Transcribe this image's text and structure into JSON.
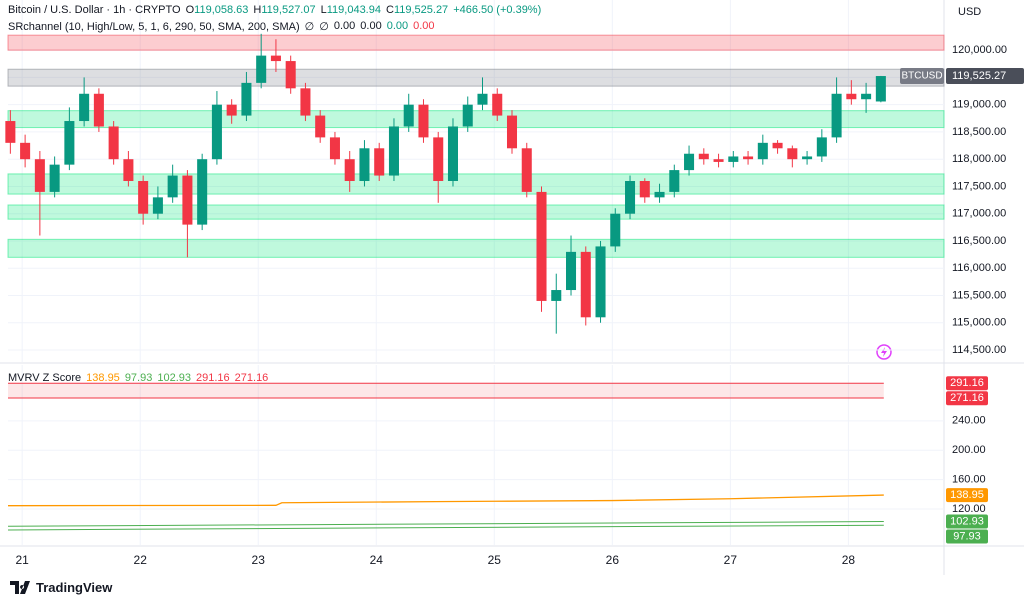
{
  "header": {
    "symbol_line": "Bitcoin / U.S. Dollar · 1h · CRYPTO",
    "ohlc": [
      {
        "key": "O",
        "text": "119,058.63"
      },
      {
        "key": "H",
        "text": "119,527.07"
      },
      {
        "key": "L",
        "text": "119,043.94"
      },
      {
        "key": "C",
        "text": "119,525.27"
      }
    ],
    "change": "+466.50 (+0.39%)",
    "currency": "USD"
  },
  "indicator": {
    "name": "SRchannel (10, High/Low, 5, 1, 6, 290, 50, SMA, 200, SMA)",
    "values": [
      {
        "text": "∅",
        "color": "#131722"
      },
      {
        "text": "∅",
        "color": "#131722"
      },
      {
        "text": "0.00",
        "color": "#131722"
      },
      {
        "text": "0.00",
        "color": "#131722"
      },
      {
        "text": "0.00",
        "color": "#089981"
      },
      {
        "text": "0.00",
        "color": "#f23645"
      }
    ]
  },
  "chart_data": [
    {
      "type": "candlestick",
      "up_color": "#089981",
      "down_color": "#f23645",
      "grid": true,
      "x": [
        20.9,
        21.025,
        21.15,
        21.275,
        21.4,
        21.525,
        21.65,
        21.775,
        21.9,
        22.025,
        22.15,
        22.275,
        22.4,
        22.525,
        22.65,
        22.775,
        22.9,
        23.025,
        23.15,
        23.275,
        23.4,
        23.525,
        23.65,
        23.775,
        23.9,
        24.025,
        24.15,
        24.275,
        24.4,
        24.525,
        24.65,
        24.775,
        24.9,
        25.025,
        25.15,
        25.275,
        25.4,
        25.525,
        25.65,
        25.775,
        25.9,
        26.025,
        26.15,
        26.275,
        26.4,
        26.525,
        26.65,
        26.775,
        26.9,
        27.025,
        27.15,
        27.275,
        27.4,
        27.525,
        27.65,
        27.775,
        27.9,
        28.025,
        28.15,
        28.275
      ],
      "open": [
        118700,
        118300,
        118000,
        117400,
        117900,
        118700,
        119200,
        118600,
        118000,
        117600,
        117000,
        117300,
        117700,
        116800,
        118000,
        119000,
        118800,
        119400,
        119900,
        119800,
        119300,
        118800,
        118400,
        118000,
        117600,
        118200,
        117700,
        118600,
        119000,
        118400,
        117600,
        118600,
        119000,
        119200,
        118800,
        118200,
        117400,
        115400,
        115600,
        116300,
        115100,
        116400,
        117000,
        117600,
        117300,
        117400,
        117800,
        118100,
        118000,
        117950,
        118050,
        118000,
        118300,
        118200,
        118000,
        118050,
        118400,
        119200,
        119100,
        119058.63
      ],
      "high": [
        118900,
        118450,
        118150,
        118050,
        118950,
        119500,
        119300,
        118700,
        118150,
        117700,
        117500,
        117900,
        117800,
        118100,
        119250,
        119100,
        119600,
        120300,
        120200,
        119900,
        119400,
        118900,
        118500,
        118150,
        118350,
        118300,
        118750,
        119200,
        119100,
        118500,
        118750,
        119150,
        119500,
        119300,
        118900,
        118300,
        117500,
        115900,
        116600,
        116400,
        116500,
        117100,
        117700,
        117650,
        117550,
        117900,
        118250,
        118200,
        118100,
        118150,
        118150,
        118450,
        118350,
        118250,
        118150,
        118550,
        119500,
        119450,
        119400,
        119527.07
      ],
      "low": [
        118100,
        117850,
        116600,
        117300,
        117800,
        118600,
        118500,
        117900,
        117500,
        116800,
        116900,
        117200,
        116200,
        116700,
        117900,
        118650,
        118700,
        119300,
        119600,
        119200,
        118700,
        118300,
        117900,
        117400,
        117500,
        117600,
        117600,
        118500,
        118300,
        117200,
        117500,
        118500,
        118900,
        118700,
        118100,
        117300,
        115200,
        114800,
        115500,
        114950,
        115000,
        116300,
        116900,
        117200,
        117200,
        117300,
        117700,
        117900,
        117850,
        117850,
        117900,
        117900,
        118100,
        117850,
        117900,
        117950,
        118300,
        119000,
        118850,
        119043.94
      ],
      "close": [
        118300,
        118000,
        117400,
        117900,
        118700,
        119200,
        118600,
        118000,
        117600,
        117000,
        117300,
        117700,
        116800,
        118000,
        119000,
        118800,
        119400,
        119900,
        119800,
        119300,
        118800,
        118400,
        118000,
        117600,
        118200,
        117700,
        118600,
        119000,
        118400,
        117600,
        118600,
        119000,
        119200,
        118800,
        118200,
        117400,
        115400,
        115600,
        116300,
        115100,
        116400,
        117000,
        117600,
        117300,
        117400,
        117800,
        118100,
        118000,
        117950,
        118050,
        118000,
        118300,
        118200,
        118000,
        118050,
        118400,
        119200,
        119100,
        119200,
        119525.27
      ],
      "zones": [
        {
          "low": 120000,
          "high": 120275,
          "color": "#f23645"
        },
        {
          "low": 119340,
          "high": 119650,
          "color": "#787b86"
        },
        {
          "low": 118580,
          "high": 118890,
          "color": "#00e676"
        },
        {
          "low": 117360,
          "high": 117730,
          "color": "#00e676"
        },
        {
          "low": 116900,
          "high": 117160,
          "color": "#00e676"
        },
        {
          "low": 116200,
          "high": 116530,
          "color": "#00e676"
        }
      ],
      "last_price": {
        "symbol": "BTCUSD",
        "value": 119525.27,
        "label": "119,525.27"
      },
      "xlim": [
        20.88,
        28.81
      ],
      "xticks": [
        21,
        22,
        23,
        24,
        25,
        26,
        27,
        28
      ],
      "ylim": [
        114280,
        120920
      ],
      "yticks": [
        {
          "value": 114500,
          "label": "114,500.00"
        },
        {
          "value": 115000,
          "label": "115,000.00"
        },
        {
          "value": 115500,
          "label": "115,500.00"
        },
        {
          "value": 116000,
          "label": "116,000.00"
        },
        {
          "value": 116500,
          "label": "116,500.00"
        },
        {
          "value": 117000,
          "label": "117,000.00"
        },
        {
          "value": 117500,
          "label": "117,500.00"
        },
        {
          "value": 118000,
          "label": "118,000.00"
        },
        {
          "value": 118500,
          "label": "118,500.00"
        },
        {
          "value": 119000,
          "label": "119,000.00"
        },
        {
          "value": 119500,
          "label": "119,500.00"
        },
        {
          "value": 120000,
          "label": "120,000.00"
        }
      ]
    },
    {
      "type": "line",
      "title": "MVRV Z Score",
      "grid": true,
      "band_color": "#f23645",
      "series": [
        {
          "color": "#ff9800",
          "last_label": "138.95",
          "x": [
            20.88,
            23.15,
            23.2,
            24.5,
            25,
            26,
            27,
            28.3
          ],
          "values": [
            124.5,
            125,
            128.5,
            130,
            130.5,
            131.5,
            134,
            138.95
          ]
        },
        {
          "color": "#4caf50",
          "last_label": "97.93",
          "x": [
            20.88,
            28.3
          ],
          "values": [
            91.5,
            97.93
          ]
        },
        {
          "color": "#4caf50",
          "last_label": "102.93",
          "x": [
            20.88,
            28.3
          ],
          "values": [
            96.5,
            102.93
          ]
        },
        {
          "color": "#f23645",
          "last_label": "291.16",
          "x": [
            20.88,
            28.3
          ],
          "values": [
            291.16,
            291.16
          ]
        },
        {
          "color": "#f23645",
          "last_label": "271.16",
          "x": [
            20.88,
            28.3
          ],
          "values": [
            271.16,
            271.16
          ]
        }
      ],
      "xlim": [
        20.88,
        28.81
      ],
      "ylim": [
        71,
        316
      ],
      "yticks": [
        {
          "value": 120,
          "label": "120.00"
        },
        {
          "value": 160,
          "label": "160.00"
        },
        {
          "value": 200,
          "label": "200.00"
        },
        {
          "value": 240,
          "label": "240.00"
        }
      ]
    }
  ],
  "footer": {
    "brand": "TradingView"
  }
}
